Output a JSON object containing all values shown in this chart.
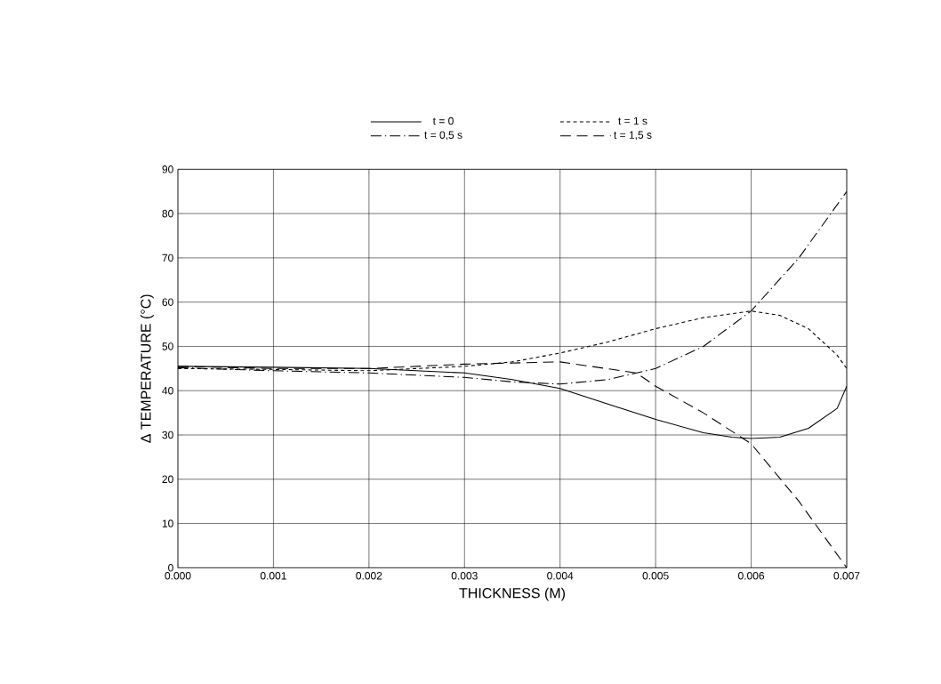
{
  "chart_data": {
    "type": "line",
    "xlabel": "THICKNESS (M)",
    "ylabel": "Δ TEMPERATURE (°C)",
    "x": [
      0,
      0.001,
      0.002,
      0.003,
      0.0035,
      0.004,
      0.0045,
      0.005,
      0.0055,
      0.006,
      0.0065,
      0.007
    ],
    "series": [
      {
        "name": "t = 0",
        "color": "#000000",
        "line_style": "solid",
        "x": [
          0,
          0.001,
          0.002,
          0.003,
          0.0035,
          0.004,
          0.0045,
          0.005,
          0.0055,
          0.0058,
          0.006,
          0.0063,
          0.0066,
          0.0069,
          0.007
        ],
        "values": [
          45.5,
          45.3,
          45,
          44,
          42.5,
          40.5,
          37,
          33.5,
          30.5,
          29.5,
          29.2,
          29.5,
          31.5,
          36,
          41
        ]
      },
      {
        "name": "t = 0,5 s",
        "color": "#000000",
        "line_style": "dashdot",
        "values": [
          45.2,
          44.5,
          44,
          43,
          42,
          41.5,
          42.5,
          45,
          50,
          58,
          70,
          85
        ]
      },
      {
        "name": "t = 1 s",
        "color": "#000000",
        "line_style": "dotted",
        "x": [
          0,
          0.001,
          0.002,
          0.003,
          0.0035,
          0.004,
          0.0045,
          0.005,
          0.0055,
          0.006,
          0.0063,
          0.0066,
          0.0069,
          0.007
        ],
        "values": [
          45,
          44.8,
          44.5,
          45.5,
          46.5,
          48.5,
          51,
          54,
          56.5,
          58,
          57,
          54,
          48,
          45
        ]
      },
      {
        "name": "t = 1,5 s",
        "color": "#000000",
        "line_style": "dashed",
        "x": [
          0,
          0.001,
          0.002,
          0.003,
          0.004,
          0.0048,
          0.005,
          0.0055,
          0.006,
          0.0065,
          0.007
        ],
        "values": [
          45.5,
          45,
          45,
          46,
          46.5,
          44,
          41,
          35,
          28,
          15,
          0
        ]
      }
    ],
    "xlim": [
      0,
      0.007
    ],
    "ylim": [
      0,
      90
    ],
    "xticks": [
      {
        "value": 0,
        "label": "0.000"
      },
      {
        "value": 0.001,
        "label": "0.001"
      },
      {
        "value": 0.002,
        "label": "0.002"
      },
      {
        "value": 0.003,
        "label": "0.003"
      },
      {
        "value": 0.004,
        "label": "0.004"
      },
      {
        "value": 0.005,
        "label": "0.005"
      },
      {
        "value": 0.006,
        "label": "0.006"
      },
      {
        "value": 0.007,
        "label": "0.007"
      }
    ],
    "yticks": [
      0,
      10,
      20,
      30,
      40,
      50,
      60,
      70,
      80,
      90
    ],
    "grid": true,
    "legend": "top"
  }
}
